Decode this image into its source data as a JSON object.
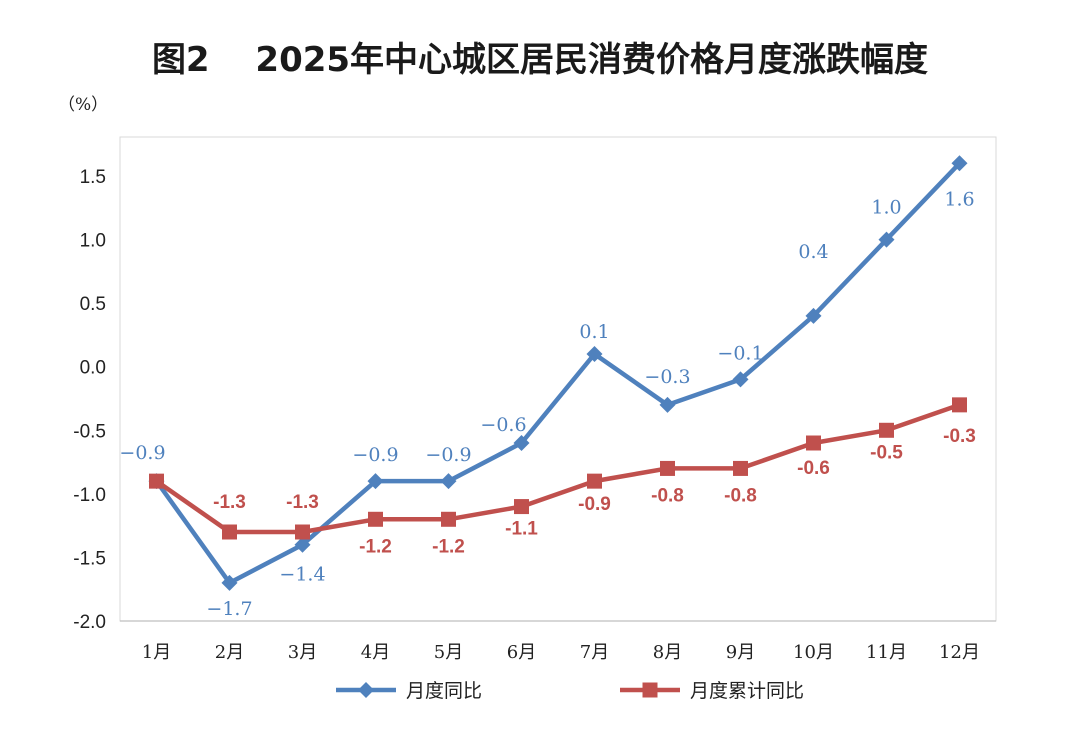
{
  "chart_data": {
    "type": "line",
    "title": "图2　 2025年中心城区居民消费价格月度涨跌幅度",
    "unit_label": "（%）",
    "categories": [
      "1月",
      "2月",
      "3月",
      "4月",
      "5月",
      "6月",
      "7月",
      "8月",
      "9月",
      "10月",
      "11月",
      "12月"
    ],
    "ylim": [
      -2.0,
      1.5
    ],
    "yticks": [
      "1.5",
      "1.0",
      "0.5",
      "0.0",
      "-0.5",
      "-1.0",
      "-1.5",
      "-2.0"
    ],
    "grid": false,
    "legend_position": "bottom",
    "series": [
      {
        "name": "月度同比",
        "color": "#4f81bd",
        "marker": "diamond",
        "values": [
          -0.9,
          -1.7,
          -1.4,
          -0.9,
          -0.9,
          -0.6,
          0.1,
          -0.3,
          -0.1,
          0.4,
          1.0,
          1.6
        ],
        "labels": [
          "−0.9",
          "−1.7",
          "−1.4",
          "−0.9",
          "−0.9",
          "−0.6",
          "0.1",
          "−0.3",
          "−0.1",
          "0.4",
          "1.0",
          "1.6"
        ]
      },
      {
        "name": "月度累计同比",
        "color": "#c0504d",
        "marker": "square",
        "values": [
          -0.9,
          -1.3,
          -1.3,
          -1.2,
          -1.2,
          -1.1,
          -0.9,
          -0.8,
          -0.8,
          -0.6,
          -0.5,
          -0.3
        ],
        "labels": [
          "",
          "-1.3",
          "-1.3",
          "-1.2",
          "-1.2",
          "-1.1",
          "-0.9",
          "-0.8",
          "-0.8",
          "-0.6",
          "-0.5",
          "-0.3"
        ]
      }
    ]
  }
}
